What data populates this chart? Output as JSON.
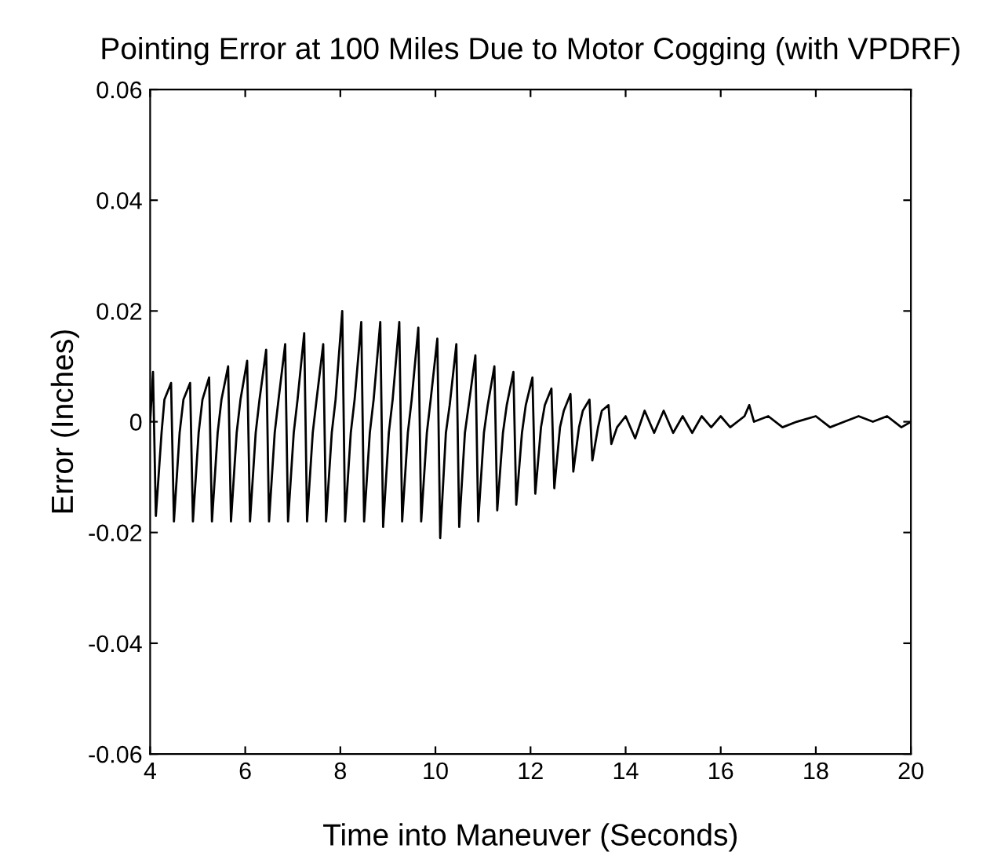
{
  "chart_data": {
    "type": "line",
    "title": "Pointing Error at 100 Miles Due to Motor Cogging (with VPDRF)",
    "xlabel": "Time into Maneuver (Seconds)",
    "ylabel": "Error (Inches)",
    "xlim": [
      4,
      20
    ],
    "xticks": [
      4,
      6,
      8,
      10,
      12,
      14,
      16,
      18,
      20
    ],
    "ylim": [
      -0.06,
      0.06
    ],
    "yticks": [
      -0.06,
      -0.04,
      -0.02,
      0,
      0.02,
      0.04,
      0.06
    ],
    "grid": false,
    "legend": false,
    "series": [
      {
        "color": "#000000",
        "x": [
          4.0,
          4.06,
          4.12,
          4.24,
          4.3,
          4.44,
          4.5,
          4.62,
          4.7,
          4.84,
          4.9,
          5.02,
          5.1,
          5.24,
          5.3,
          5.42,
          5.5,
          5.64,
          5.7,
          5.82,
          5.9,
          6.04,
          6.1,
          6.22,
          6.3,
          6.44,
          6.5,
          6.62,
          6.7,
          6.84,
          6.9,
          7.02,
          7.1,
          7.24,
          7.3,
          7.42,
          7.5,
          7.64,
          7.7,
          7.82,
          7.9,
          8.04,
          8.1,
          8.22,
          8.3,
          8.44,
          8.5,
          8.62,
          8.7,
          8.84,
          8.9,
          9.02,
          9.1,
          9.24,
          9.3,
          9.42,
          9.5,
          9.64,
          9.7,
          9.82,
          9.9,
          10.04,
          10.1,
          10.22,
          10.3,
          10.44,
          10.5,
          10.62,
          10.7,
          10.84,
          10.9,
          11.02,
          11.1,
          11.24,
          11.3,
          11.42,
          11.5,
          11.64,
          11.7,
          11.82,
          11.9,
          12.04,
          12.1,
          12.22,
          12.3,
          12.44,
          12.5,
          12.62,
          12.7,
          12.84,
          12.9,
          13.02,
          13.1,
          13.24,
          13.3,
          13.42,
          13.5,
          13.64,
          13.7,
          13.82,
          14.0,
          14.2,
          14.4,
          14.6,
          14.8,
          15.0,
          15.2,
          15.4,
          15.6,
          15.8,
          16.0,
          16.2,
          16.5,
          16.6,
          16.7,
          17.0,
          17.3,
          17.6,
          18.0,
          18.3,
          18.6,
          18.9,
          19.2,
          19.5,
          19.8,
          20.0
        ],
        "values": [
          0.0,
          0.009,
          -0.017,
          -0.002,
          0.004,
          0.007,
          -0.018,
          -0.002,
          0.004,
          0.007,
          -0.018,
          -0.002,
          0.004,
          0.008,
          -0.018,
          -0.002,
          0.004,
          0.01,
          -0.018,
          -0.002,
          0.004,
          0.011,
          -0.018,
          -0.002,
          0.004,
          0.013,
          -0.018,
          -0.002,
          0.004,
          0.014,
          -0.018,
          -0.002,
          0.004,
          0.016,
          -0.018,
          -0.002,
          0.004,
          0.014,
          -0.018,
          -0.002,
          0.004,
          0.02,
          -0.018,
          -0.002,
          0.004,
          0.018,
          -0.018,
          -0.002,
          0.004,
          0.018,
          -0.019,
          -0.002,
          0.004,
          0.018,
          -0.018,
          -0.002,
          0.004,
          0.017,
          -0.018,
          -0.002,
          0.004,
          0.015,
          -0.021,
          -0.002,
          0.003,
          0.014,
          -0.019,
          -0.002,
          0.003,
          0.012,
          -0.018,
          -0.002,
          0.003,
          0.01,
          -0.016,
          -0.002,
          0.003,
          0.009,
          -0.015,
          -0.002,
          0.003,
          0.008,
          -0.013,
          -0.001,
          0.003,
          0.006,
          -0.012,
          -0.001,
          0.002,
          0.005,
          -0.009,
          -0.001,
          0.002,
          0.004,
          -0.007,
          -0.001,
          0.002,
          0.003,
          -0.004,
          -0.001,
          0.001,
          -0.003,
          0.002,
          -0.002,
          0.002,
          -0.002,
          0.001,
          -0.002,
          0.001,
          -0.001,
          0.001,
          -0.001,
          0.001,
          0.003,
          0.0,
          0.001,
          -0.001,
          0.0,
          0.001,
          -0.001,
          0.0,
          0.001,
          0.0,
          0.001,
          -0.001,
          0.0
        ]
      }
    ]
  }
}
